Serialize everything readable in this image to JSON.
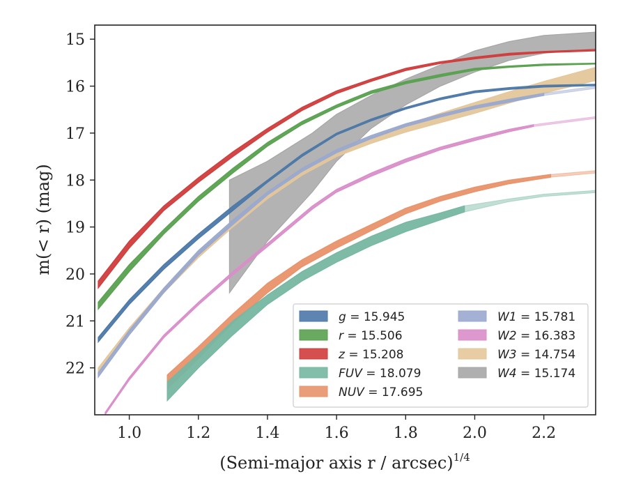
{
  "chart_data": {
    "type": "line",
    "title": "",
    "xlabel": "(Semi-major axis r / arcsec)",
    "xlabel_sup": "1/4",
    "ylabel": "m(< r) (mag)",
    "xlim": [
      0.9,
      2.35
    ],
    "ylim": [
      23.0,
      14.7
    ],
    "y_inverted": true,
    "grid": false,
    "legend_position": "lower-right",
    "xticks": [
      1.0,
      1.2,
      1.4,
      1.6,
      1.8,
      2.0,
      2.2
    ],
    "xtick_labels": [
      "1.0",
      "1.2",
      "1.4",
      "1.6",
      "1.8",
      "2.0",
      "2.2"
    ],
    "yticks": [
      15,
      16,
      17,
      18,
      19,
      20,
      21,
      22
    ],
    "ytick_labels": [
      "15",
      "16",
      "17",
      "18",
      "19",
      "20",
      "21",
      "22"
    ],
    "series": [
      {
        "name": "g",
        "total": "15.945",
        "color": "#4c78a8",
        "x": [
          0.91,
          1.0,
          1.1,
          1.2,
          1.3,
          1.4,
          1.5,
          1.6,
          1.7,
          1.8,
          1.9,
          2.0,
          2.1,
          2.2,
          2.35
        ],
        "lo": [
          21.35,
          20.55,
          19.8,
          19.15,
          18.55,
          18.0,
          17.45,
          17.0,
          16.7,
          16.45,
          16.25,
          16.1,
          16.03,
          15.98,
          15.96
        ],
        "hi": [
          21.45,
          20.65,
          19.9,
          19.25,
          18.65,
          18.05,
          17.5,
          17.04,
          16.74,
          16.49,
          16.29,
          16.14,
          16.07,
          16.02,
          15.99
        ]
      },
      {
        "name": "r",
        "total": "15.506",
        "color": "#59a14f",
        "x": [
          0.91,
          1.0,
          1.1,
          1.2,
          1.3,
          1.4,
          1.5,
          1.6,
          1.7,
          1.8,
          1.9,
          2.0,
          2.1,
          2.2,
          2.35
        ],
        "lo": [
          20.6,
          19.8,
          19.05,
          18.35,
          17.75,
          17.2,
          16.75,
          16.4,
          16.1,
          15.9,
          15.75,
          15.62,
          15.57,
          15.53,
          15.51
        ],
        "hi": [
          20.75,
          19.95,
          19.15,
          18.45,
          17.85,
          17.28,
          16.82,
          16.46,
          16.16,
          15.95,
          15.8,
          15.66,
          15.6,
          15.56,
          15.53
        ]
      },
      {
        "name": "z",
        "total": "15.208",
        "color": "#d03c3c",
        "x": [
          0.91,
          1.0,
          1.1,
          1.2,
          1.3,
          1.4,
          1.5,
          1.6,
          1.7,
          1.8,
          1.9,
          2.0,
          2.1,
          2.2,
          2.35
        ],
        "lo": [
          20.15,
          19.3,
          18.55,
          17.95,
          17.4,
          16.9,
          16.45,
          16.1,
          15.85,
          15.62,
          15.48,
          15.38,
          15.3,
          15.26,
          15.22
        ],
        "hi": [
          20.3,
          19.45,
          18.65,
          18.05,
          17.5,
          16.98,
          16.52,
          16.16,
          15.9,
          15.67,
          15.52,
          15.42,
          15.34,
          15.29,
          15.25
        ]
      },
      {
        "name": "FUV",
        "total": "18.079",
        "color": "#76b7a2",
        "x": [
          1.11,
          1.2,
          1.3,
          1.4,
          1.5,
          1.6,
          1.7,
          1.8,
          1.9,
          1.97,
          2.1,
          2.2,
          2.35
        ],
        "lo": [
          22.3,
          21.7,
          21.0,
          20.45,
          19.95,
          19.55,
          19.2,
          18.9,
          18.7,
          18.55,
          18.4,
          18.3,
          18.22
        ],
        "hi": [
          22.7,
          22.0,
          21.3,
          20.65,
          20.15,
          19.75,
          19.4,
          19.1,
          18.85,
          18.68,
          18.46,
          18.35,
          18.27
        ],
        "full_to": 1.97
      },
      {
        "name": "NUV",
        "total": "17.695",
        "color": "#e8926a",
        "x": [
          1.11,
          1.2,
          1.3,
          1.4,
          1.5,
          1.6,
          1.7,
          1.8,
          1.9,
          2.0,
          2.1,
          2.22,
          2.35
        ],
        "lo": [
          22.15,
          21.55,
          20.85,
          20.2,
          19.7,
          19.3,
          18.95,
          18.6,
          18.35,
          18.15,
          18.0,
          17.88,
          17.8
        ],
        "hi": [
          22.45,
          21.8,
          21.05,
          20.4,
          19.85,
          19.45,
          19.08,
          18.72,
          18.45,
          18.25,
          18.08,
          17.94,
          17.85
        ],
        "full_to": 2.22
      },
      {
        "name": "W1",
        "total": "15.781",
        "color": "#9aa9cf",
        "x": [
          0.91,
          1.0,
          1.1,
          1.2,
          1.3,
          1.4,
          1.5,
          1.6,
          1.7,
          1.8,
          1.9,
          2.0,
          2.1,
          2.2,
          2.35
        ],
        "lo": [
          22.1,
          21.2,
          20.3,
          19.5,
          18.85,
          18.25,
          17.75,
          17.35,
          17.05,
          16.8,
          16.6,
          16.42,
          16.28,
          16.15,
          16.0
        ],
        "hi": [
          22.2,
          21.3,
          20.4,
          19.6,
          18.95,
          18.32,
          17.82,
          17.42,
          17.12,
          16.86,
          16.66,
          16.48,
          16.34,
          16.2,
          16.05
        ],
        "full_to": 2.2
      },
      {
        "name": "W2",
        "total": "16.383",
        "color": "#d98ec9",
        "x": [
          0.93,
          1.0,
          1.1,
          1.2,
          1.3,
          1.4,
          1.53,
          1.6,
          1.7,
          1.8,
          1.9,
          2.0,
          2.1,
          2.17,
          2.35
        ],
        "lo": [
          22.95,
          22.2,
          21.3,
          20.6,
          19.95,
          19.35,
          18.55,
          18.2,
          17.85,
          17.55,
          17.3,
          17.1,
          16.92,
          16.82,
          16.65
        ],
        "hi": [
          23.0,
          22.26,
          21.36,
          20.66,
          20.02,
          19.42,
          18.62,
          18.26,
          17.92,
          17.62,
          17.36,
          17.16,
          16.97,
          16.86,
          16.69
        ],
        "full_to": 2.17
      },
      {
        "name": "W3",
        "total": "14.754",
        "color": "#e4c69a",
        "x": [
          0.91,
          1.0,
          1.1,
          1.2,
          1.3,
          1.4,
          1.5,
          1.6,
          1.7,
          1.8,
          1.9,
          2.0,
          2.1,
          2.2,
          2.35
        ],
        "lo": [
          22.0,
          21.15,
          20.3,
          19.55,
          18.9,
          18.3,
          17.8,
          17.4,
          17.1,
          16.82,
          16.58,
          16.35,
          16.12,
          15.9,
          15.6
        ],
        "hi": [
          22.1,
          21.25,
          20.4,
          19.65,
          19.0,
          18.4,
          17.9,
          17.5,
          17.22,
          16.98,
          16.78,
          16.58,
          16.36,
          16.15,
          15.88
        ]
      },
      {
        "name": "W4",
        "total": "15.174",
        "color": "#a6a6a6",
        "x": [
          1.29,
          1.4,
          1.53,
          1.6,
          1.7,
          1.8,
          1.9,
          2.0,
          2.1,
          2.2,
          2.35
        ],
        "lo": [
          18.0,
          17.6,
          17.0,
          16.6,
          16.2,
          15.85,
          15.55,
          15.25,
          15.05,
          14.92,
          14.85
        ],
        "hi": [
          20.4,
          19.3,
          18.25,
          17.6,
          16.9,
          16.4,
          16.0,
          15.7,
          15.45,
          15.3,
          15.2
        ]
      }
    ]
  }
}
